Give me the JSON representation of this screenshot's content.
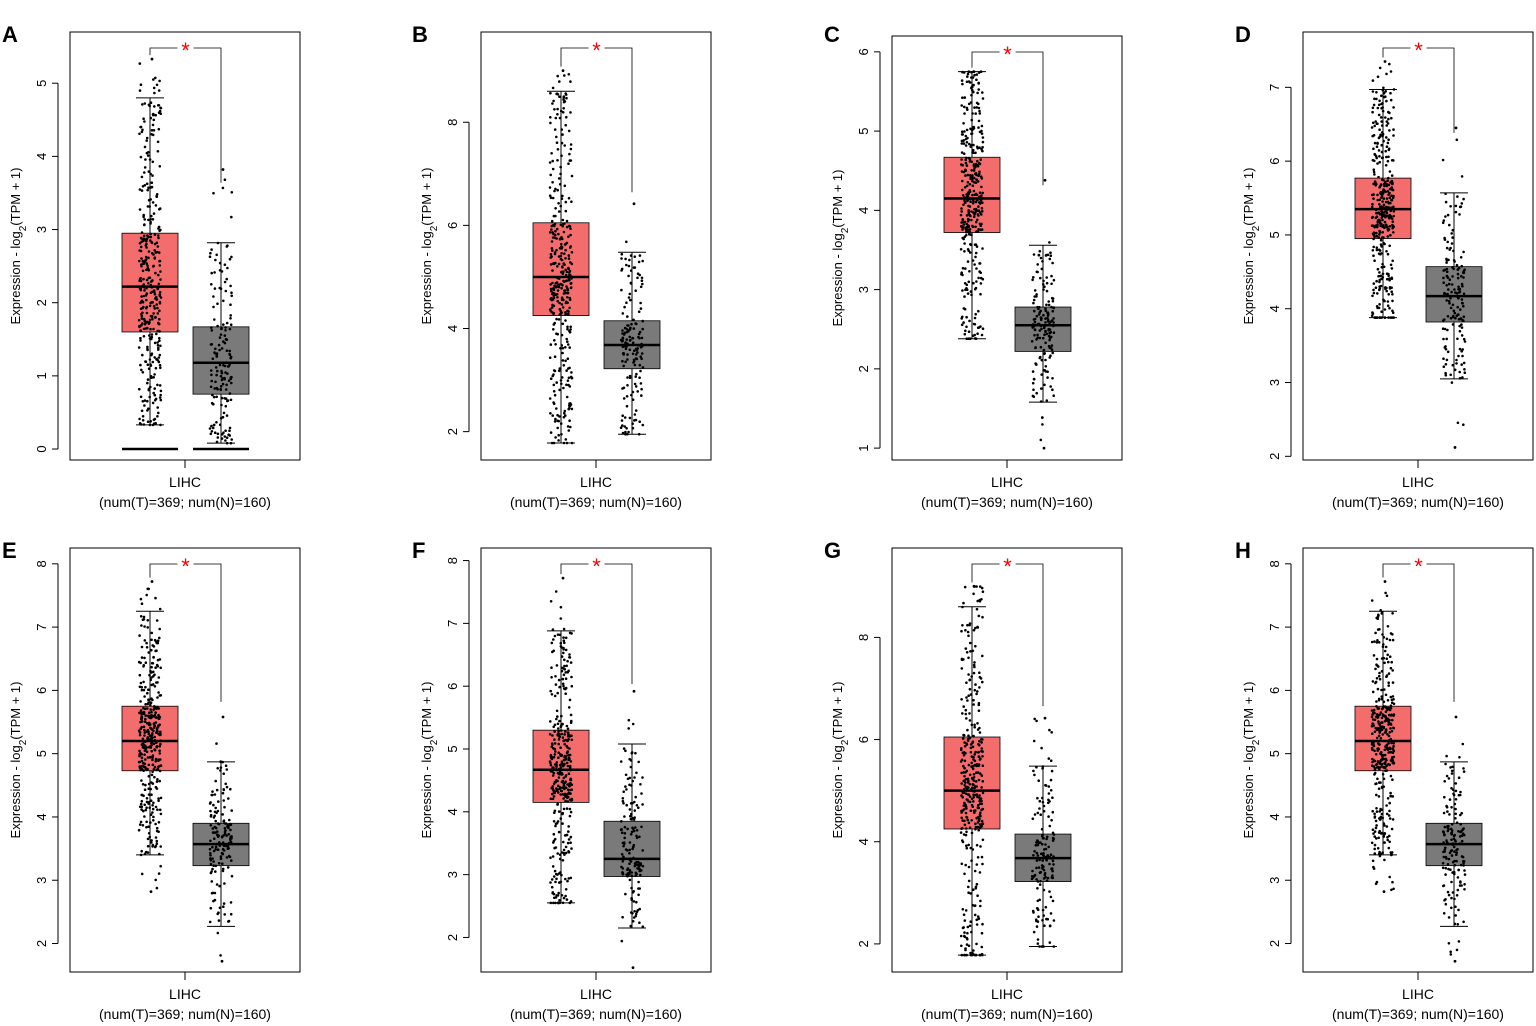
{
  "figure": {
    "colors": {
      "tumor": "#f46d6d",
      "normal": "#7a7a7a",
      "star": "#ff0000",
      "frame": "#000000"
    }
  },
  "chart_data": [
    {
      "panel": "A",
      "type": "box",
      "ylabel": "Expression - log2(TPM + 1)",
      "ylim": [
        -0.15,
        5.7
      ],
      "yticks": [
        0,
        1,
        2,
        3,
        4,
        5
      ],
      "xlabel": "LIHC",
      "xsublabel": "(num(T)=369; num(N)=160)",
      "significance": "*",
      "series": [
        {
          "name": "Tumor",
          "n": 369,
          "whisker_low": 0.33,
          "q1": 1.6,
          "median": 2.22,
          "q3": 2.95,
          "whisker_high": 4.8,
          "max_point": 5.33,
          "zero_bar": true
        },
        {
          "name": "Normal",
          "n": 160,
          "whisker_low": 0.08,
          "q1": 0.75,
          "median": 1.18,
          "q3": 1.67,
          "whisker_high": 2.82,
          "max_point": 3.82,
          "zero_bar": true
        }
      ]
    },
    {
      "panel": "B",
      "type": "box",
      "ylabel": "Expression - log2(TPM + 1)",
      "ylim": [
        1.45,
        9.75
      ],
      "yticks": [
        2,
        4,
        6,
        8
      ],
      "xlabel": "LIHC",
      "xsublabel": "(num(T)=369; num(N)=160)",
      "significance": "*",
      "series": [
        {
          "name": "Tumor",
          "n": 369,
          "whisker_low": 1.78,
          "q1": 4.25,
          "median": 5.0,
          "q3": 6.05,
          "whisker_high": 8.6,
          "max_point": 9.0
        },
        {
          "name": "Normal",
          "n": 160,
          "whisker_low": 1.95,
          "q1": 3.22,
          "median": 3.68,
          "q3": 4.15,
          "whisker_high": 5.48,
          "max_point": 6.42
        }
      ]
    },
    {
      "panel": "C",
      "type": "box",
      "ylabel": "Expression - log2(TPM + 1)",
      "ylim": [
        0.85,
        6.2
      ],
      "yticks": [
        1,
        2,
        3,
        4,
        5,
        6
      ],
      "xlabel": "LIHC",
      "xsublabel": "(num(T)=369; num(N)=160)",
      "significance": "*",
      "series": [
        {
          "name": "Tumor",
          "n": 369,
          "whisker_low": 2.38,
          "q1": 3.72,
          "median": 4.15,
          "q3": 4.67,
          "whisker_high": 5.75,
          "max_point": 5.75
        },
        {
          "name": "Normal",
          "n": 160,
          "whisker_low": 1.58,
          "q1": 2.22,
          "median": 2.55,
          "q3": 2.78,
          "whisker_high": 3.56,
          "min_point": 1.0,
          "max_point": 4.38
        }
      ]
    },
    {
      "panel": "D",
      "type": "box",
      "ylabel": "Expression - log2(TPM + 1)",
      "ylim": [
        1.95,
        7.75
      ],
      "yticks": [
        2,
        3,
        4,
        5,
        6,
        7
      ],
      "xlabel": "LIHC",
      "xsublabel": "(num(T)=369; num(N)=160)",
      "significance": "*",
      "series": [
        {
          "name": "Tumor",
          "n": 369,
          "whisker_low": 3.88,
          "q1": 4.95,
          "median": 5.35,
          "q3": 5.77,
          "whisker_high": 6.97,
          "max_point": 7.35
        },
        {
          "name": "Normal",
          "n": 160,
          "whisker_low": 3.05,
          "q1": 3.82,
          "median": 4.17,
          "q3": 4.57,
          "whisker_high": 5.57,
          "min_point": 2.12,
          "max_point": 6.45
        }
      ]
    },
    {
      "panel": "E",
      "type": "box",
      "ylabel": "Expression - log2(TPM + 1)",
      "ylim": [
        1.55,
        8.25
      ],
      "yticks": [
        2,
        3,
        4,
        5,
        6,
        7,
        8
      ],
      "xlabel": "LIHC",
      "xsublabel": "(num(T)=369; num(N)=160)",
      "significance": "*",
      "series": [
        {
          "name": "Tumor",
          "n": 369,
          "whisker_low": 3.4,
          "q1": 4.73,
          "median": 5.2,
          "q3": 5.75,
          "whisker_high": 7.25,
          "min_point": 2.82,
          "max_point": 7.72
        },
        {
          "name": "Normal",
          "n": 160,
          "whisker_low": 2.27,
          "q1": 3.23,
          "median": 3.57,
          "q3": 3.9,
          "whisker_high": 4.87,
          "min_point": 1.72,
          "max_point": 5.58
        }
      ]
    },
    {
      "panel": "F",
      "type": "box",
      "ylabel": "Expression - log2(TPM + 1)",
      "ylim": [
        1.45,
        8.2
      ],
      "yticks": [
        2,
        3,
        4,
        5,
        6,
        7,
        8
      ],
      "xlabel": "LIHC",
      "xsublabel": "(num(T)=369; num(N)=160)",
      "significance": "*",
      "series": [
        {
          "name": "Tumor",
          "n": 369,
          "whisker_low": 2.55,
          "q1": 4.15,
          "median": 4.67,
          "q3": 5.3,
          "whisker_high": 6.88,
          "max_point": 7.72
        },
        {
          "name": "Normal",
          "n": 160,
          "whisker_low": 2.15,
          "q1": 2.97,
          "median": 3.25,
          "q3": 3.85,
          "whisker_high": 5.08,
          "min_point": 1.52,
          "max_point": 5.92
        }
      ]
    },
    {
      "panel": "G",
      "type": "box",
      "ylabel": "Expression - log2(TPM + 1)",
      "ylim": [
        1.45,
        9.75
      ],
      "yticks": [
        2,
        4,
        6,
        8
      ],
      "xlabel": "LIHC",
      "xsublabel": "(num(T)=369; num(N)=160)",
      "significance": "*",
      "series": [
        {
          "name": "Tumor",
          "n": 369,
          "whisker_low": 1.78,
          "q1": 4.25,
          "median": 5.0,
          "q3": 6.05,
          "whisker_high": 8.6,
          "max_point": 9.0
        },
        {
          "name": "Normal",
          "n": 160,
          "whisker_low": 1.95,
          "q1": 3.22,
          "median": 3.68,
          "q3": 4.15,
          "whisker_high": 5.48,
          "max_point": 6.42
        }
      ]
    },
    {
      "panel": "H",
      "type": "box",
      "ylabel": "Expression - log2(TPM + 1)",
      "ylim": [
        1.55,
        8.25
      ],
      "yticks": [
        2,
        3,
        4,
        5,
        6,
        7,
        8
      ],
      "xlabel": "LIHC",
      "xsublabel": "(num(T)=369; num(N)=160)",
      "significance": "*",
      "series": [
        {
          "name": "Tumor",
          "n": 369,
          "whisker_low": 3.4,
          "q1": 4.73,
          "median": 5.2,
          "q3": 5.75,
          "whisker_high": 7.25,
          "min_point": 2.82,
          "max_point": 7.72
        },
        {
          "name": "Normal",
          "n": 160,
          "whisker_low": 2.27,
          "q1": 3.23,
          "median": 3.57,
          "q3": 3.9,
          "whisker_high": 4.87,
          "min_point": 1.72,
          "max_point": 5.58
        }
      ]
    }
  ]
}
